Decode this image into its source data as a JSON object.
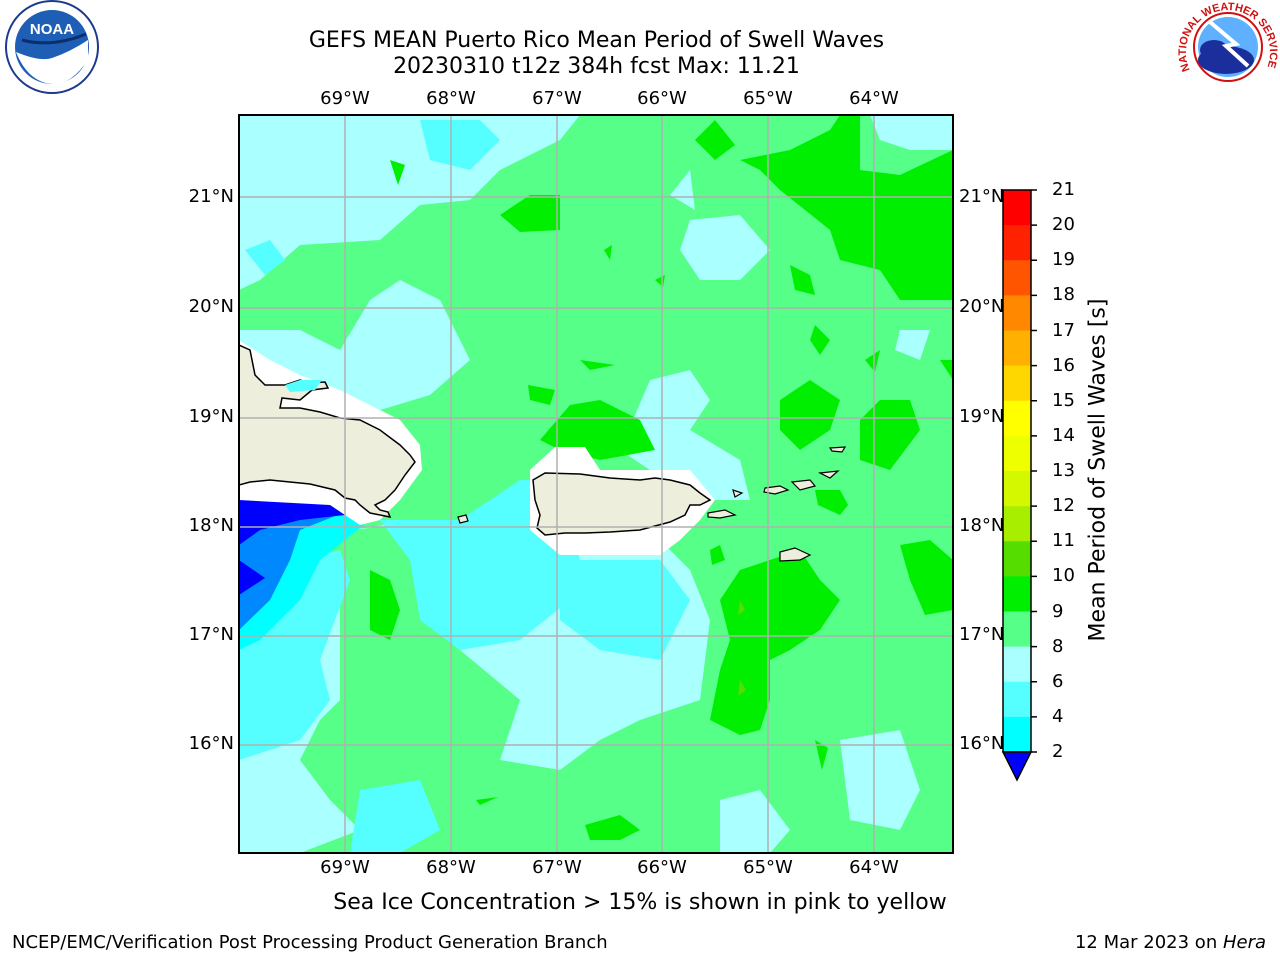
{
  "title": {
    "line1": "GEFS MEAN Puerto Rico Mean Period of Swell Waves",
    "line2": "20230310 t12z 384h fcst   Max: 11.21"
  },
  "map": {
    "lon_labels": [
      "69°W",
      "68°W",
      "67°W",
      "66°W",
      "65°W",
      "64°W"
    ],
    "lat_labels": [
      "21°N",
      "20°N",
      "19°N",
      "18°N",
      "17°N",
      "16°N"
    ]
  },
  "colorbar": {
    "label": "Mean Period of Swell Waves [s]",
    "ticks": [
      "21",
      "20",
      "19",
      "18",
      "17",
      "16",
      "15",
      "14",
      "13",
      "12",
      "11",
      "10",
      "9",
      "8",
      "6",
      "4",
      "2"
    ],
    "colors": [
      "#ff0000",
      "#ff2200",
      "#ff5500",
      "#ff8800",
      "#ffb000",
      "#ffd700",
      "#ffff00",
      "#eeff00",
      "#d4f800",
      "#a8ee00",
      "#55dd00",
      "#00ee00",
      "#55ff88",
      "#aaffff",
      "#55ffff",
      "#00ffff",
      "#0088ff",
      "#0000ff"
    ]
  },
  "caption": "Sea Ice Concentration > 15% is shown in pink to yellow",
  "footer": {
    "left": "NCEP/EMC/Verification Post Processing Product Generation Branch",
    "right_date": "12 Mar 2023 on ",
    "right_host": "Hera"
  },
  "logos": {
    "left": "NOAA",
    "right": "NATIONAL WEATHER SERVICE"
  }
}
